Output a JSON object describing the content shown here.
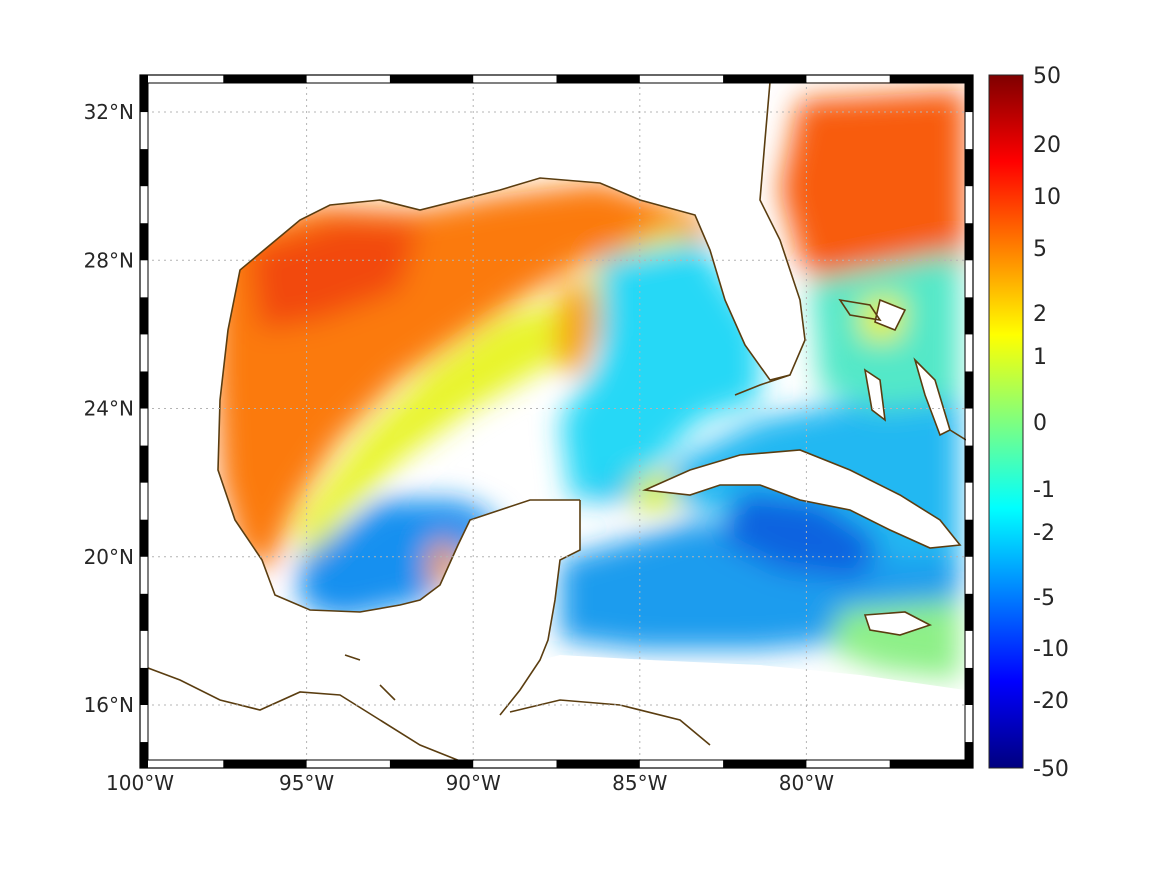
{
  "map": {
    "type": "heatmap",
    "lon_range": [
      -100,
      -75
    ],
    "lat_range": [
      14.3,
      33
    ],
    "grid": true,
    "frame": "black-and-white alternating border",
    "coastline_color": "#5a3d10",
    "lon_ticks": [
      {
        "value": -100,
        "label": "100°W"
      },
      {
        "value": -95,
        "label": "95°W"
      },
      {
        "value": -90,
        "label": "90°W"
      },
      {
        "value": -85,
        "label": "85°W"
      },
      {
        "value": -80,
        "label": "80°W"
      }
    ],
    "lat_ticks": [
      {
        "value": 32,
        "label": "32°N"
      },
      {
        "value": 28,
        "label": "28°N"
      },
      {
        "value": 24,
        "label": "24°N"
      },
      {
        "value": 20,
        "label": "20°N"
      },
      {
        "value": 16,
        "label": "16°N"
      }
    ]
  },
  "colorbar": {
    "colormap": "jet",
    "placement": "right",
    "ticks": [
      "50",
      "20",
      "10",
      "5",
      "2",
      "1",
      "0",
      "-1",
      "-2",
      "-5",
      "-10",
      "-20",
      "-50"
    ]
  }
}
